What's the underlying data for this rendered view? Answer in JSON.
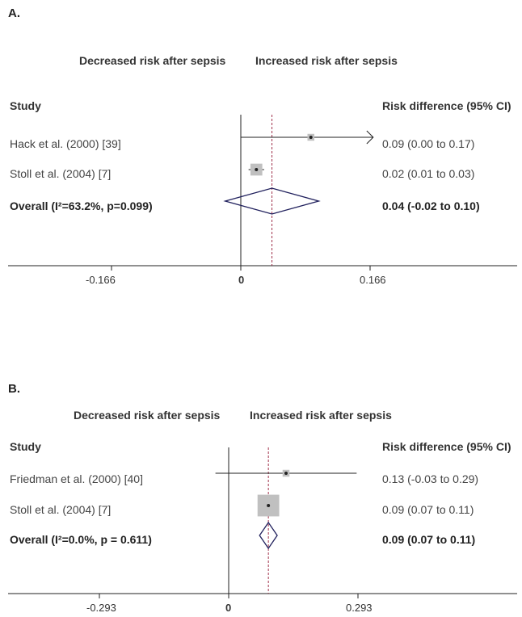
{
  "chart_data": [
    {
      "type": "forest",
      "panel_label": "A.",
      "direction_left": "Decreased risk after sepsis",
      "direction_right": "Increased risk after sepsis",
      "study_header": "Study",
      "effect_header": "Risk difference (95% CI)",
      "xlim": [
        -0.25,
        0.35
      ],
      "x_ticks": [
        {
          "value": -0.166,
          "label": "-0.166"
        },
        {
          "value": 0,
          "label": "0"
        },
        {
          "value": 0.166,
          "label": "0.166"
        }
      ],
      "reference_line": 0.04,
      "studies": [
        {
          "name": "Hack et al. (2000) [39]",
          "estimate": 0.09,
          "lower": 0.0,
          "upper": 0.17,
          "text": "0.09 (0.00 to 0.17)",
          "weight": 0.5,
          "arrow_right": true
        },
        {
          "name": "Stoll et al. (2004) [7]",
          "estimate": 0.02,
          "lower": 0.01,
          "upper": 0.03,
          "text": "0.02 (0.01 to 0.03)",
          "weight": 1.5,
          "arrow_right": false
        }
      ],
      "overall": {
        "name": "Overall  (I²=63.2%, p=0.099)",
        "estimate": 0.04,
        "lower": -0.02,
        "upper": 0.1,
        "text": "0.04 (-0.02 to 0.10)"
      }
    },
    {
      "type": "forest",
      "panel_label": "B.",
      "direction_left": "Decreased risk after sepsis",
      "direction_right": "Increased risk after sepsis",
      "study_header": "Study",
      "effect_header": "Risk difference (95% CI)",
      "xlim": [
        -0.5,
        0.6
      ],
      "x_ticks": [
        {
          "value": -0.293,
          "label": "-0.293"
        },
        {
          "value": 0,
          "label": "0"
        },
        {
          "value": 0.293,
          "label": "0.293"
        }
      ],
      "reference_line": 0.09,
      "studies": [
        {
          "name": "Friedman et al. (2000) [40]",
          "estimate": 0.13,
          "lower": -0.03,
          "upper": 0.29,
          "text": "0.13 (-0.03 to 0.29)",
          "weight": 0.5,
          "arrow_right": false
        },
        {
          "name": "Stoll et al. (2004) [7]",
          "estimate": 0.09,
          "lower": 0.07,
          "upper": 0.11,
          "text": "0.09 (0.07 to 0.11)",
          "weight": 5,
          "arrow_right": false
        }
      ],
      "overall": {
        "name": "Overall  (I²=0.0%, p = 0.611)",
        "estimate": 0.09,
        "lower": 0.07,
        "upper": 0.11,
        "text": "0.09 (0.07 to 0.11)"
      }
    }
  ],
  "colors": {
    "diamond": "#1f1f5c",
    "reference_line": "#a0304a",
    "axis": "#222222",
    "weight_box": "#c0c0c0"
  }
}
